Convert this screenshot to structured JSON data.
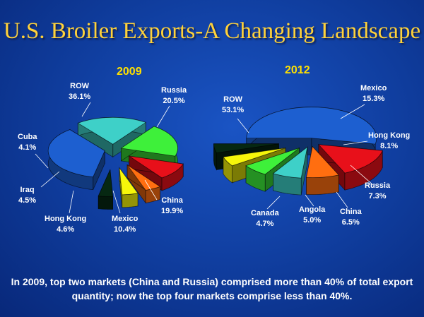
{
  "title": "U.S. Broiler Exports-A Changing Landscape",
  "footer": "In 2009, top two markets (China and Russia) comprised more than 40% of total export quantity; now the top four markets comprise less than 40%.",
  "colors": {
    "ROW": "#1d5fd0",
    "Russia": "#3ed0c8",
    "China": "#3ef03a",
    "Mexico": "#e8101a",
    "Hong Kong": "#ff6e10",
    "Iraq": "#f6f60a",
    "Cuba": "#062812",
    "Canada": "#062812",
    "Angola": "#f6f60a"
  },
  "chart_data": [
    {
      "type": "pie",
      "title": "2009",
      "categories": [
        "ROW",
        "Russia",
        "China",
        "Mexico",
        "Hong Kong",
        "Iraq",
        "Cuba"
      ],
      "values": [
        36.1,
        20.5,
        19.9,
        10.4,
        4.6,
        4.5,
        4.1
      ],
      "value_labels": [
        "36.1%",
        "20.5%",
        "19.9%",
        "10.4%",
        "4.6%",
        "4.5%",
        "4.1%"
      ]
    },
    {
      "type": "pie",
      "title": "2012",
      "categories": [
        "ROW",
        "Mexico",
        "Hong Kong",
        "Russia",
        "China",
        "Angola",
        "Canada"
      ],
      "values": [
        53.1,
        15.3,
        8.1,
        7.3,
        6.5,
        5.0,
        4.7
      ],
      "value_labels": [
        "53.1%",
        "15.3%",
        "8.1%",
        "7.3%",
        "6.5%",
        "5.0%",
        "4.7%"
      ]
    }
  ]
}
